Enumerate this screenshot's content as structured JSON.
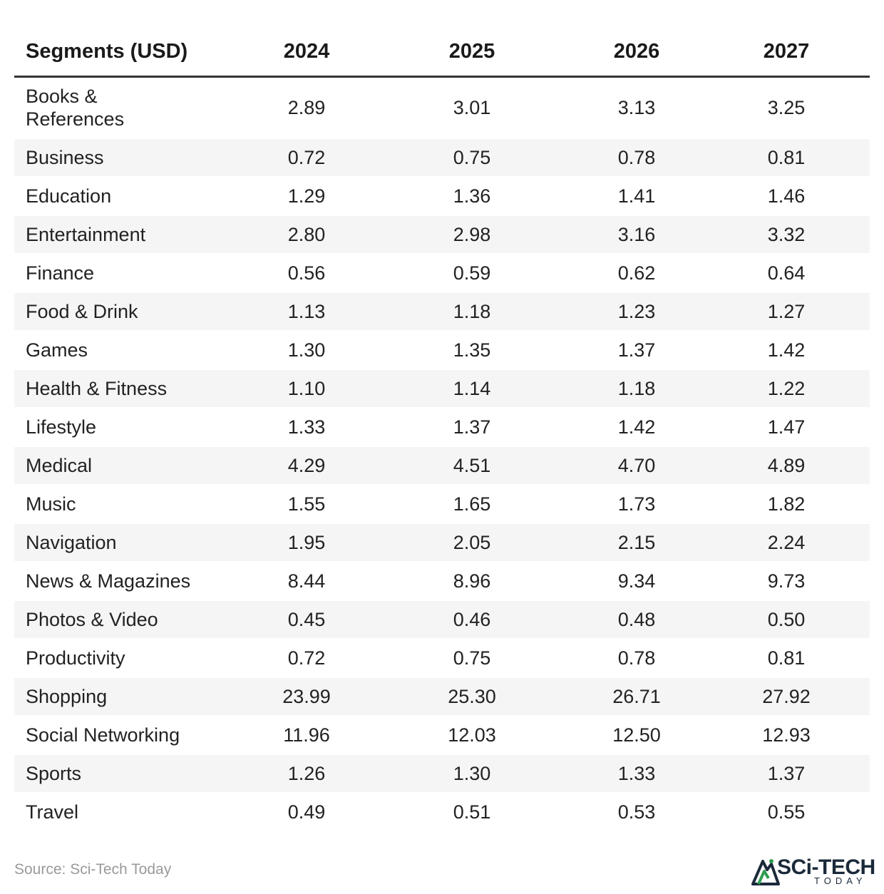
{
  "chart_data": {
    "type": "table",
    "columns": [
      "Segments (USD)",
      "2024",
      "2025",
      "2026",
      "2027"
    ],
    "rows": [
      [
        "Books & References",
        "2.89",
        "3.01",
        "3.13",
        "3.25"
      ],
      [
        "Business",
        "0.72",
        "0.75",
        "0.78",
        "0.81"
      ],
      [
        "Education",
        "1.29",
        "1.36",
        "1.41",
        "1.46"
      ],
      [
        "Entertainment",
        "2.80",
        "2.98",
        "3.16",
        "3.32"
      ],
      [
        "Finance",
        "0.56",
        "0.59",
        "0.62",
        "0.64"
      ],
      [
        "Food & Drink",
        "1.13",
        "1.18",
        "1.23",
        "1.27"
      ],
      [
        "Games",
        "1.30",
        "1.35",
        "1.37",
        "1.42"
      ],
      [
        "Health & Fitness",
        "1.10",
        "1.14",
        "1.18",
        "1.22"
      ],
      [
        "Lifestyle",
        "1.33",
        "1.37",
        "1.42",
        "1.47"
      ],
      [
        "Medical",
        "4.29",
        "4.51",
        "4.70",
        "4.89"
      ],
      [
        "Music",
        "1.55",
        "1.65",
        "1.73",
        "1.82"
      ],
      [
        "Navigation",
        "1.95",
        "2.05",
        "2.15",
        "2.24"
      ],
      [
        "News & Magazines",
        "8.44",
        "8.96",
        "9.34",
        "9.73"
      ],
      [
        "Photos & Video",
        "0.45",
        "0.46",
        "0.48",
        "0.50"
      ],
      [
        "Productivity",
        "0.72",
        "0.75",
        "0.78",
        "0.81"
      ],
      [
        "Shopping",
        "23.99",
        "25.30",
        "26.71",
        "27.92"
      ],
      [
        "Social Networking",
        "11.96",
        "12.03",
        "12.50",
        "12.93"
      ],
      [
        "Sports",
        "1.26",
        "1.30",
        "1.33",
        "1.37"
      ],
      [
        "Travel",
        "0.49",
        "0.51",
        "0.53",
        "0.55"
      ]
    ]
  },
  "source": "Source: Sci-Tech Today",
  "logo": {
    "name": "SCi-TECH",
    "sub": "TODAY",
    "icon": "sci-tech-logo-icon"
  },
  "colors": {
    "header_rule": "#333333",
    "stripe": "#f5f5f5",
    "source_text": "#9a9a9a",
    "logo_green": "#2e9e4f",
    "logo_navy": "#1b2a3a"
  }
}
